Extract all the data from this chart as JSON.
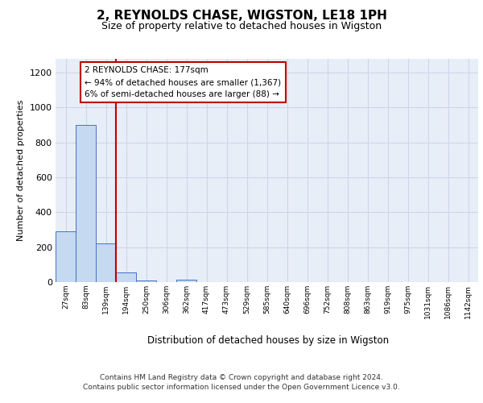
{
  "title": "2, REYNOLDS CHASE, WIGSTON, LE18 1PH",
  "subtitle": "Size of property relative to detached houses in Wigston",
  "xlabel": "Distribution of detached houses by size in Wigston",
  "ylabel": "Number of detached properties",
  "bar_labels": [
    "27sqm",
    "83sqm",
    "139sqm",
    "194sqm",
    "250sqm",
    "306sqm",
    "362sqm",
    "417sqm",
    "473sqm",
    "529sqm",
    "585sqm",
    "640sqm",
    "696sqm",
    "752sqm",
    "808sqm",
    "863sqm",
    "919sqm",
    "975sqm",
    "1031sqm",
    "1086sqm",
    "1142sqm"
  ],
  "bar_values": [
    290,
    900,
    220,
    55,
    10,
    0,
    15,
    0,
    0,
    0,
    0,
    0,
    0,
    0,
    0,
    0,
    0,
    0,
    0,
    0,
    0
  ],
  "bar_color": "#c5d9f0",
  "bar_edge_color": "#4472c4",
  "property_line_color": "#c00000",
  "annotation_text": "2 REYNOLDS CHASE: 177sqm\n← 94% of detached houses are smaller (1,367)\n6% of semi-detached houses are larger (88) →",
  "ylim": [
    0,
    1280
  ],
  "yticks": [
    0,
    200,
    400,
    600,
    800,
    1000,
    1200
  ],
  "grid_color": "#cdd6e8",
  "background_color": "#e8eef8",
  "footer_line1": "Contains HM Land Registry data © Crown copyright and database right 2024.",
  "footer_line2": "Contains public sector information licensed under the Open Government Licence v3.0."
}
